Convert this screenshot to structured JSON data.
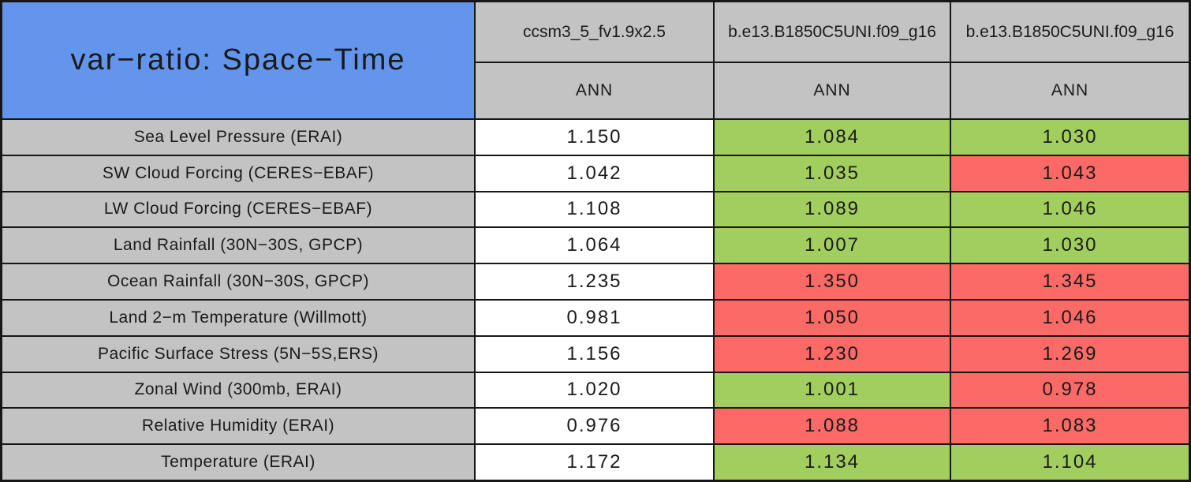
{
  "colors": {
    "header_blue": "#6495ED",
    "header_gray": "#C3C3C3",
    "better": "#A2CE60",
    "worse": "#FB6A66",
    "neutral": "#FFFFFF",
    "border": "#161616",
    "text": "#1A1A1A"
  },
  "table": {
    "title": "var−ratio: Space−Time",
    "columns": [
      {
        "model": "ccsm3_5_fv1.9x2.5",
        "season": "ANN"
      },
      {
        "model": "b.e13.B1850C5UNI.f09_g16",
        "season": "ANN"
      },
      {
        "model": "b.e13.B1850C5UNI.f09_g16",
        "season": "ANN"
      }
    ],
    "rows": [
      {
        "label": "Sea Level Pressure (ERAI)",
        "cells": [
          {
            "value": "1.150",
            "status": "neutral"
          },
          {
            "value": "1.084",
            "status": "better"
          },
          {
            "value": "1.030",
            "status": "better"
          }
        ]
      },
      {
        "label": "SW Cloud Forcing (CERES−EBAF)",
        "cells": [
          {
            "value": "1.042",
            "status": "neutral"
          },
          {
            "value": "1.035",
            "status": "better"
          },
          {
            "value": "1.043",
            "status": "worse"
          }
        ]
      },
      {
        "label": "LW Cloud Forcing (CERES−EBAF)",
        "cells": [
          {
            "value": "1.108",
            "status": "neutral"
          },
          {
            "value": "1.089",
            "status": "better"
          },
          {
            "value": "1.046",
            "status": "better"
          }
        ]
      },
      {
        "label": "Land Rainfall (30N−30S, GPCP)",
        "cells": [
          {
            "value": "1.064",
            "status": "neutral"
          },
          {
            "value": "1.007",
            "status": "better"
          },
          {
            "value": "1.030",
            "status": "better"
          }
        ]
      },
      {
        "label": "Ocean Rainfall (30N−30S, GPCP)",
        "cells": [
          {
            "value": "1.235",
            "status": "neutral"
          },
          {
            "value": "1.350",
            "status": "worse"
          },
          {
            "value": "1.345",
            "status": "worse"
          }
        ]
      },
      {
        "label": "Land 2−m Temperature (Willmott)",
        "cells": [
          {
            "value": "0.981",
            "status": "neutral"
          },
          {
            "value": "1.050",
            "status": "worse"
          },
          {
            "value": "1.046",
            "status": "worse"
          }
        ]
      },
      {
        "label": "Pacific Surface Stress (5N−5S,ERS)",
        "cells": [
          {
            "value": "1.156",
            "status": "neutral"
          },
          {
            "value": "1.230",
            "status": "worse"
          },
          {
            "value": "1.269",
            "status": "worse"
          }
        ]
      },
      {
        "label": "Zonal Wind (300mb, ERAI)",
        "cells": [
          {
            "value": "1.020",
            "status": "neutral"
          },
          {
            "value": "1.001",
            "status": "better"
          },
          {
            "value": "0.978",
            "status": "worse"
          }
        ]
      },
      {
        "label": "Relative Humidity (ERAI)",
        "cells": [
          {
            "value": "0.976",
            "status": "neutral"
          },
          {
            "value": "1.088",
            "status": "worse"
          },
          {
            "value": "1.083",
            "status": "worse"
          }
        ]
      },
      {
        "label": "Temperature (ERAI)",
        "cells": [
          {
            "value": "1.172",
            "status": "neutral"
          },
          {
            "value": "1.134",
            "status": "better"
          },
          {
            "value": "1.104",
            "status": "better"
          }
        ]
      }
    ]
  },
  "chart_data": {
    "type": "table",
    "title": "var-ratio: Space-Time",
    "columns": [
      "ccsm3_5_fv1.9x2.5 (ANN)",
      "b.e13.B1850C5UNI.f09_g16 (ANN)",
      "b.e13.B1850C5UNI.f09_g16 (ANN)"
    ],
    "categories": [
      "Sea Level Pressure (ERAI)",
      "SW Cloud Forcing (CERES-EBAF)",
      "LW Cloud Forcing (CERES-EBAF)",
      "Land Rainfall (30N-30S, GPCP)",
      "Ocean Rainfall (30N-30S, GPCP)",
      "Land 2-m Temperature (Willmott)",
      "Pacific Surface Stress (5N-5S,ERS)",
      "Zonal Wind (300mb, ERAI)",
      "Relative Humidity (ERAI)",
      "Temperature (ERAI)"
    ],
    "series": [
      {
        "name": "ccsm3_5_fv1.9x2.5",
        "values": [
          1.15,
          1.042,
          1.108,
          1.064,
          1.235,
          0.981,
          1.156,
          1.02,
          0.976,
          1.172
        ]
      },
      {
        "name": "b.e13.B1850C5UNI.f09_g16 (col 2)",
        "values": [
          1.084,
          1.035,
          1.089,
          1.007,
          1.35,
          1.05,
          1.23,
          1.001,
          1.088,
          1.134
        ]
      },
      {
        "name": "b.e13.B1850C5UNI.f09_g16 (col 3)",
        "values": [
          1.03,
          1.043,
          1.046,
          1.03,
          1.345,
          1.046,
          1.269,
          0.978,
          1.083,
          1.104
        ]
      }
    ],
    "cell_highlight": {
      "green": "#A2CE60",
      "red": "#FB6A66",
      "col2": [
        "green",
        "green",
        "green",
        "green",
        "red",
        "red",
        "red",
        "green",
        "red",
        "green"
      ],
      "col3": [
        "green",
        "red",
        "green",
        "green",
        "red",
        "red",
        "red",
        "red",
        "red",
        "green"
      ]
    }
  }
}
